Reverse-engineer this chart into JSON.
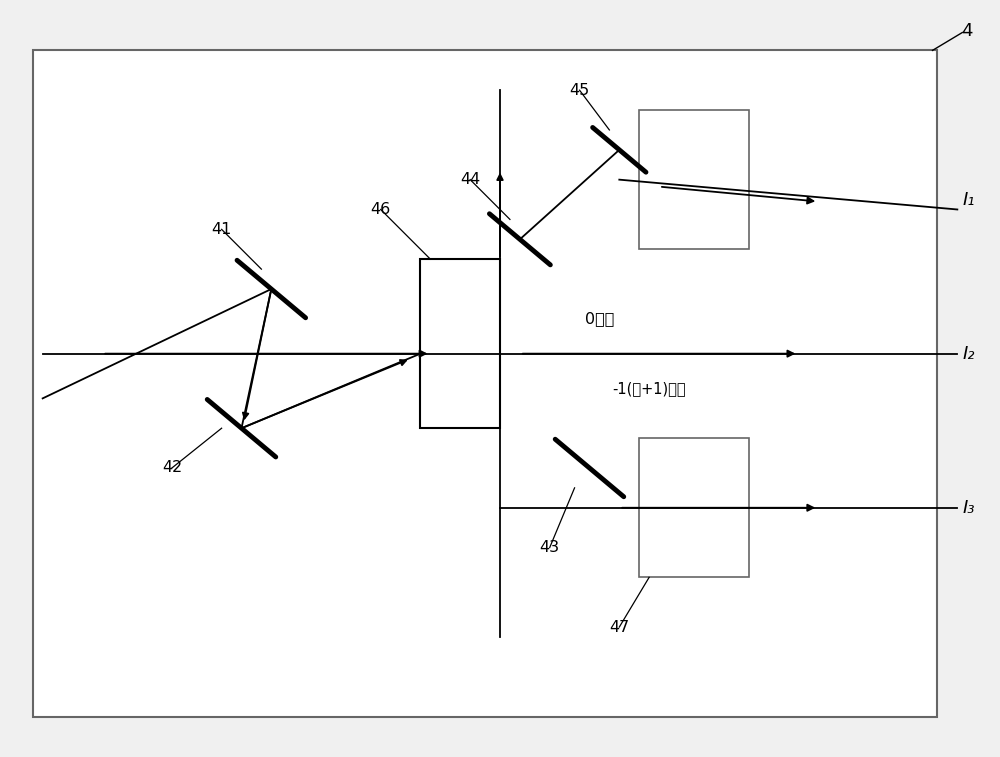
{
  "bg_color": "#f0f0f0",
  "line_color": "#000000",
  "fig_width": 10.0,
  "fig_height": 7.57,
  "corner_label": "4",
  "label_41": "41",
  "label_42": "42",
  "label_43": "43",
  "label_44": "44",
  "label_45": "45",
  "label_46": "46",
  "label_47": "47",
  "label_I1": "I₁",
  "label_I2": "I₂",
  "label_I3": "I₃",
  "label_0level": "0级光",
  "label_neg1level": "-1(或+1)级光"
}
